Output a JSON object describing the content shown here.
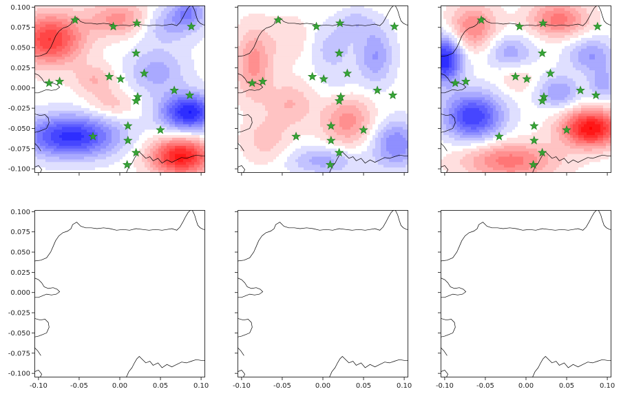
{
  "chart_data": [
    {
      "type": "contour-map",
      "row": 0,
      "col": 0,
      "xlim": [
        -0.105,
        0.105
      ],
      "ylim": [
        -0.105,
        0.102
      ],
      "xticks": [
        "-0.10",
        "-0.05",
        "0.00",
        "0.05",
        "0.10"
      ],
      "yticks": [
        "0.100",
        "0.075",
        "0.050",
        "0.025",
        "0.000",
        "-0.025",
        "-0.050",
        "-0.075",
        "-0.100"
      ],
      "show_xticklabels": false,
      "show_yticklabels": true,
      "colormap": "bwr",
      "field": [
        {
          "x": -0.085,
          "y": 0.06,
          "amp": 0.75,
          "sx": 0.028,
          "sy": 0.022
        },
        {
          "x": 0.005,
          "y": 0.085,
          "amp": 0.45,
          "sx": 0.03,
          "sy": 0.015
        },
        {
          "x": 0.055,
          "y": 0.08,
          "amp": -0.35,
          "sx": 0.03,
          "sy": 0.016
        },
        {
          "x": 0.085,
          "y": 0.095,
          "amp": -0.35,
          "sx": 0.014,
          "sy": 0.012
        },
        {
          "x": -0.06,
          "y": -0.06,
          "amp": -0.8,
          "sx": 0.04,
          "sy": 0.018
        },
        {
          "x": 0.085,
          "y": -0.03,
          "amp": -0.85,
          "sx": 0.024,
          "sy": 0.016
        },
        {
          "x": 0.075,
          "y": -0.085,
          "amp": 0.9,
          "sx": 0.026,
          "sy": 0.016
        },
        {
          "x": 0.045,
          "y": 0.02,
          "amp": -0.3,
          "sx": 0.025,
          "sy": 0.02
        },
        {
          "x": -0.03,
          "y": 0.01,
          "amp": 0.25,
          "sx": 0.018,
          "sy": 0.013
        },
        {
          "x": -0.01,
          "y": -0.02,
          "amp": 0.2,
          "sx": 0.02,
          "sy": 0.012
        }
      ]
    },
    {
      "type": "contour-map",
      "row": 0,
      "col": 1,
      "xlim": [
        -0.105,
        0.105
      ],
      "ylim": [
        -0.105,
        0.102
      ],
      "xticks": [
        "-0.10",
        "-0.05",
        "0.00",
        "0.05",
        "0.10"
      ],
      "yticks": [
        "0.100",
        "0.075",
        "0.050",
        "0.025",
        "0.000",
        "-0.025",
        "-0.050",
        "-0.075",
        "-0.100"
      ],
      "show_xticklabels": false,
      "show_yticklabels": false,
      "colormap": "bwr",
      "field": [
        {
          "x": -0.085,
          "y": 0.03,
          "amp": 0.4,
          "sx": 0.015,
          "sy": 0.03
        },
        {
          "x": -0.04,
          "y": 0.06,
          "amp": 0.15,
          "sx": 0.02,
          "sy": 0.02
        },
        {
          "x": 0.01,
          "y": 0.05,
          "amp": -0.2,
          "sx": 0.02,
          "sy": 0.02
        },
        {
          "x": 0.065,
          "y": 0.04,
          "amp": -0.35,
          "sx": 0.015,
          "sy": 0.025
        },
        {
          "x": 0.03,
          "y": -0.04,
          "amp": 0.4,
          "sx": 0.022,
          "sy": 0.022
        },
        {
          "x": 0.09,
          "y": -0.07,
          "amp": -0.45,
          "sx": 0.02,
          "sy": 0.02
        },
        {
          "x": 0.0,
          "y": -0.09,
          "amp": -0.3,
          "sx": 0.03,
          "sy": 0.012
        },
        {
          "x": -0.07,
          "y": -0.065,
          "amp": 0.2,
          "sx": 0.02,
          "sy": 0.02
        },
        {
          "x": -0.04,
          "y": -0.02,
          "amp": 0.25,
          "sx": 0.02,
          "sy": 0.02
        },
        {
          "x": 0.04,
          "y": 0.08,
          "amp": -0.2,
          "sx": 0.015,
          "sy": 0.012
        },
        {
          "x": 0.02,
          "y": 0.005,
          "amp": -0.1,
          "sx": 0.02,
          "sy": 0.018
        }
      ]
    },
    {
      "type": "contour-map",
      "row": 0,
      "col": 2,
      "xlim": [
        -0.105,
        0.105
      ],
      "ylim": [
        -0.105,
        0.102
      ],
      "xticks": [
        "-0.10",
        "-0.05",
        "0.00",
        "0.05",
        "0.10"
      ],
      "yticks": [
        "0.100",
        "0.075",
        "0.050",
        "0.025",
        "0.000",
        "-0.025",
        "-0.050",
        "-0.075",
        "-0.100"
      ],
      "show_xticklabels": false,
      "show_yticklabels": false,
      "colormap": "bwr",
      "field": [
        {
          "x": -0.1,
          "y": 0.035,
          "amp": -0.85,
          "sx": 0.015,
          "sy": 0.02
        },
        {
          "x": -0.065,
          "y": 0.075,
          "amp": 0.45,
          "sx": 0.02,
          "sy": 0.02
        },
        {
          "x": 0.04,
          "y": 0.085,
          "amp": 0.5,
          "sx": 0.025,
          "sy": 0.015
        },
        {
          "x": -0.02,
          "y": 0.045,
          "amp": -0.3,
          "sx": 0.02,
          "sy": 0.014
        },
        {
          "x": 0.08,
          "y": 0.04,
          "amp": -0.35,
          "sx": 0.02,
          "sy": 0.015
        },
        {
          "x": -0.065,
          "y": -0.035,
          "amp": -0.75,
          "sx": 0.025,
          "sy": 0.02
        },
        {
          "x": 0.08,
          "y": -0.05,
          "amp": 0.95,
          "sx": 0.025,
          "sy": 0.016
        },
        {
          "x": -0.02,
          "y": -0.09,
          "amp": 0.5,
          "sx": 0.04,
          "sy": 0.016
        },
        {
          "x": 0.04,
          "y": -0.005,
          "amp": -0.35,
          "sx": 0.018,
          "sy": 0.014
        },
        {
          "x": 0.095,
          "y": 0.005,
          "amp": -0.3,
          "sx": 0.012,
          "sy": 0.014
        },
        {
          "x": -0.01,
          "y": 0.01,
          "amp": 0.15,
          "sx": 0.015,
          "sy": 0.012
        }
      ]
    },
    {
      "type": "map",
      "row": 1,
      "col": 0,
      "xlim": [
        -0.105,
        0.105
      ],
      "ylim": [
        -0.105,
        0.102
      ],
      "xticks": [
        "-0.10",
        "-0.05",
        "0.00",
        "0.05",
        "0.10"
      ],
      "yticks": [
        "0.100",
        "0.075",
        "0.050",
        "0.025",
        "0.000",
        "-0.025",
        "-0.050",
        "-0.075",
        "-0.100"
      ],
      "show_xticklabels": true,
      "show_yticklabels": true
    },
    {
      "type": "map",
      "row": 1,
      "col": 1,
      "xlim": [
        -0.105,
        0.105
      ],
      "ylim": [
        -0.105,
        0.102
      ],
      "xticks": [
        "-0.10",
        "-0.05",
        "0.00",
        "0.05",
        "0.10"
      ],
      "yticks": [
        "0.100",
        "0.075",
        "0.050",
        "0.025",
        "0.000",
        "-0.025",
        "-0.050",
        "-0.075",
        "-0.100"
      ],
      "show_xticklabels": true,
      "show_yticklabels": false
    },
    {
      "type": "map",
      "row": 1,
      "col": 2,
      "xlim": [
        -0.105,
        0.105
      ],
      "ylim": [
        -0.105,
        0.102
      ],
      "xticks": [
        "-0.10",
        "-0.05",
        "0.00",
        "0.05",
        "0.10"
      ],
      "yticks": [
        "0.100",
        "0.075",
        "0.050",
        "0.025",
        "0.000",
        "-0.025",
        "-0.050",
        "-0.075",
        "-0.100"
      ],
      "show_xticklabels": true,
      "show_yticklabels": false
    }
  ],
  "stations": {
    "marker": "star",
    "color": "#2ca02c",
    "points": [
      {
        "x": -0.055,
        "y": 0.084
      },
      {
        "x": -0.008,
        "y": 0.076
      },
      {
        "x": 0.021,
        "y": 0.08
      },
      {
        "x": 0.088,
        "y": 0.076
      },
      {
        "x": 0.02,
        "y": 0.043
      },
      {
        "x": 0.03,
        "y": 0.018
      },
      {
        "x": -0.013,
        "y": 0.014
      },
      {
        "x": 0.001,
        "y": 0.011
      },
      {
        "x": -0.087,
        "y": 0.006
      },
      {
        "x": -0.074,
        "y": 0.008
      },
      {
        "x": 0.067,
        "y": -0.003
      },
      {
        "x": 0.086,
        "y": -0.009
      },
      {
        "x": 0.022,
        "y": -0.011
      },
      {
        "x": 0.02,
        "y": -0.016
      },
      {
        "x": 0.01,
        "y": -0.047
      },
      {
        "x": 0.05,
        "y": -0.052
      },
      {
        "x": -0.033,
        "y": -0.06
      },
      {
        "x": 0.01,
        "y": -0.065
      },
      {
        "x": 0.02,
        "y": -0.08
      },
      {
        "x": 0.009,
        "y": -0.095
      }
    ]
  },
  "coastline": {
    "color": "#000000",
    "segments": [
      [
        [
          -0.105,
          0.039
        ],
        [
          -0.097,
          0.04
        ],
        [
          -0.09,
          0.043
        ],
        [
          -0.085,
          0.05
        ],
        [
          -0.082,
          0.057
        ],
        [
          -0.079,
          0.064
        ],
        [
          -0.075,
          0.07
        ],
        [
          -0.07,
          0.074
        ],
        [
          -0.064,
          0.076
        ],
        [
          -0.06,
          0.079
        ],
        [
          -0.058,
          0.084
        ],
        [
          -0.053,
          0.087
        ],
        [
          -0.048,
          0.082
        ],
        [
          -0.042,
          0.08
        ],
        [
          -0.035,
          0.08
        ],
        [
          -0.028,
          0.079
        ],
        [
          -0.02,
          0.08
        ],
        [
          -0.012,
          0.079
        ],
        [
          -0.004,
          0.077
        ],
        [
          0.004,
          0.078
        ],
        [
          0.012,
          0.077
        ],
        [
          0.02,
          0.079
        ],
        [
          0.028,
          0.078
        ],
        [
          0.036,
          0.077
        ],
        [
          0.044,
          0.078
        ],
        [
          0.052,
          0.077
        ],
        [
          0.058,
          0.078
        ],
        [
          0.064,
          0.079
        ],
        [
          0.07,
          0.077
        ],
        [
          0.074,
          0.081
        ],
        [
          0.078,
          0.088
        ],
        [
          0.081,
          0.094
        ],
        [
          0.084,
          0.099
        ],
        [
          0.087,
          0.102
        ]
      ],
      [
        [
          0.089,
          0.102
        ],
        [
          0.092,
          0.096
        ],
        [
          0.094,
          0.089
        ],
        [
          0.096,
          0.083
        ],
        [
          0.099,
          0.08
        ],
        [
          0.103,
          0.078
        ],
        [
          0.105,
          0.078
        ]
      ],
      [
        [
          -0.105,
          0.018
        ],
        [
          -0.1,
          0.016
        ],
        [
          -0.096,
          0.012
        ],
        [
          -0.093,
          0.007
        ],
        [
          -0.088,
          0.005
        ],
        [
          -0.082,
          0.006
        ],
        [
          -0.077,
          0.004
        ],
        [
          -0.074,
          0.001
        ],
        [
          -0.078,
          -0.002
        ],
        [
          -0.084,
          -0.003
        ],
        [
          -0.09,
          -0.002
        ],
        [
          -0.095,
          -0.004
        ],
        [
          -0.1,
          -0.006
        ],
        [
          -0.105,
          -0.006
        ]
      ],
      [
        [
          -0.105,
          -0.032
        ],
        [
          -0.098,
          -0.034
        ],
        [
          -0.092,
          -0.033
        ],
        [
          -0.088,
          -0.037
        ],
        [
          -0.087,
          -0.043
        ],
        [
          -0.09,
          -0.05
        ],
        [
          -0.095,
          -0.052
        ],
        [
          -0.1,
          -0.054
        ],
        [
          -0.105,
          -0.055
        ]
      ],
      [
        [
          -0.105,
          -0.068
        ],
        [
          -0.101,
          -0.072
        ],
        [
          -0.097,
          -0.078
        ]
      ],
      [
        [
          -0.105,
          -0.098
        ],
        [
          -0.1,
          -0.096
        ],
        [
          -0.096,
          -0.101
        ],
        [
          -0.098,
          -0.105
        ]
      ],
      [
        [
          0.008,
          -0.105
        ],
        [
          0.011,
          -0.098
        ],
        [
          0.015,
          -0.093
        ],
        [
          0.018,
          -0.087
        ],
        [
          0.021,
          -0.082
        ],
        [
          0.024,
          -0.079
        ],
        [
          0.028,
          -0.083
        ],
        [
          0.032,
          -0.087
        ],
        [
          0.037,
          -0.085
        ],
        [
          0.041,
          -0.09
        ],
        [
          0.047,
          -0.087
        ],
        [
          0.052,
          -0.093
        ],
        [
          0.058,
          -0.089
        ],
        [
          0.064,
          -0.092
        ],
        [
          0.07,
          -0.089
        ],
        [
          0.076,
          -0.086
        ],
        [
          0.082,
          -0.087
        ],
        [
          0.088,
          -0.085
        ],
        [
          0.094,
          -0.083
        ],
        [
          0.1,
          -0.084
        ],
        [
          0.105,
          -0.084
        ]
      ]
    ]
  }
}
